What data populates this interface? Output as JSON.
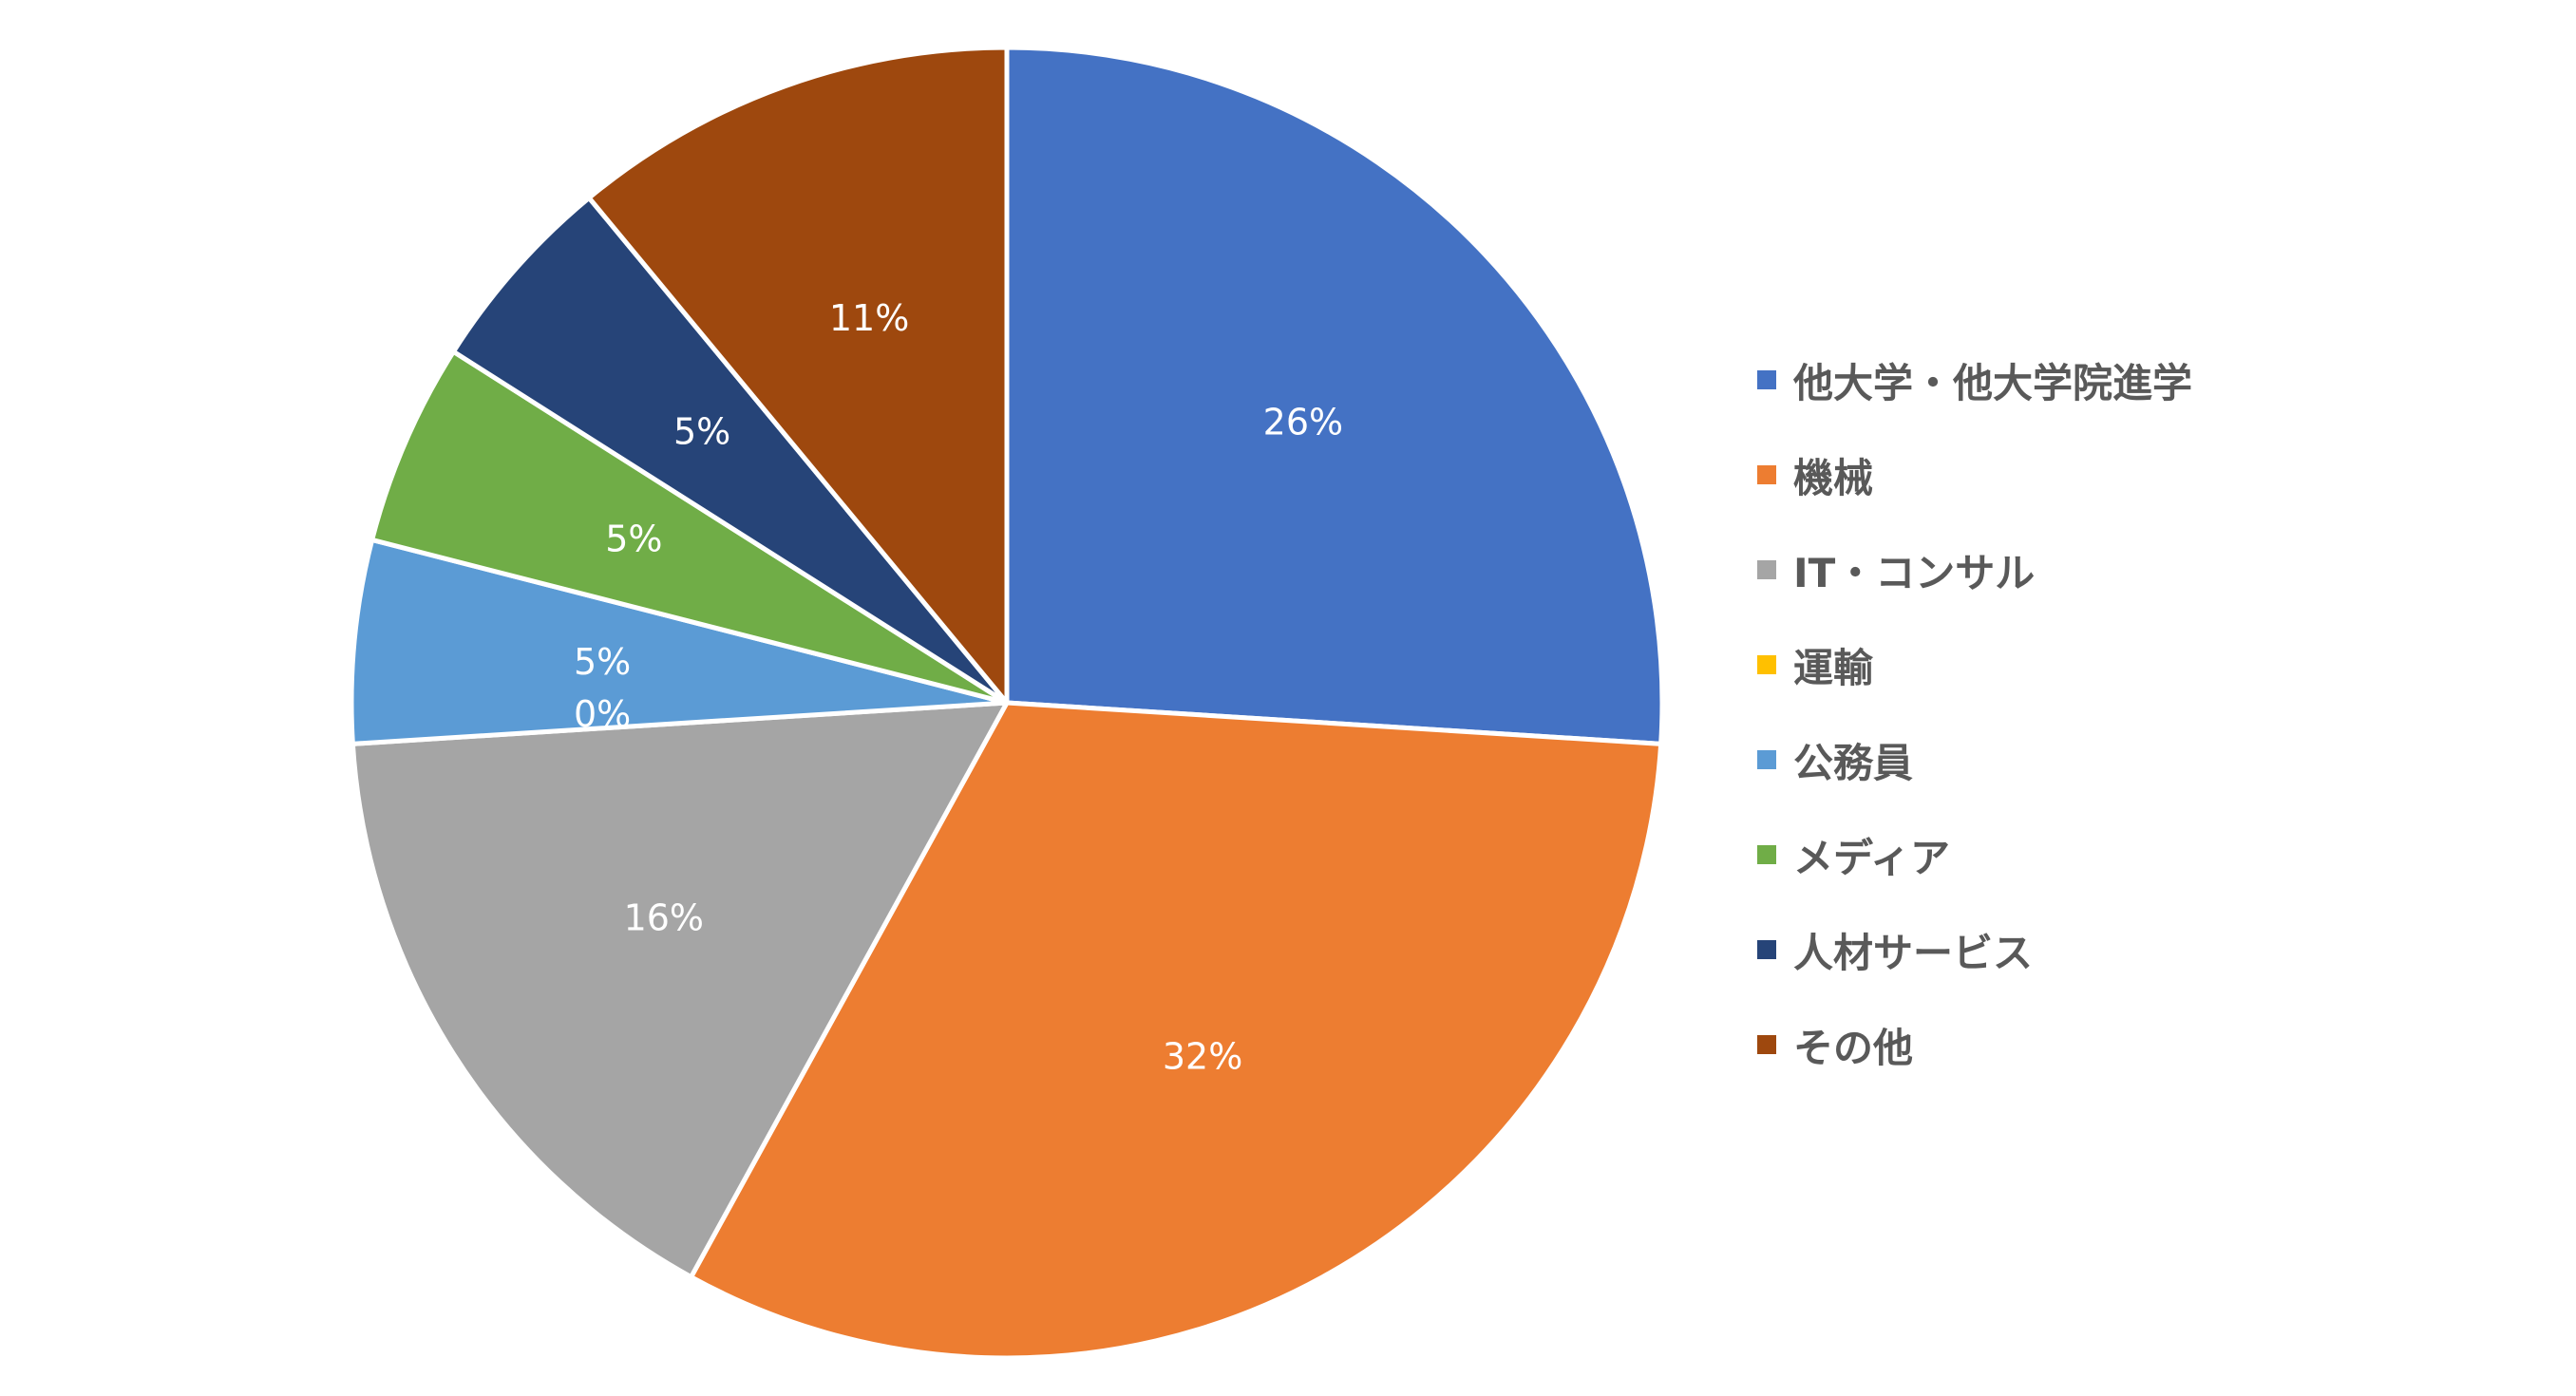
{
  "chart_data": {
    "type": "pie",
    "title": "",
    "start_angle_deg": 0,
    "direction": "clockwise",
    "legend_position": "right",
    "slices": [
      {
        "name": "他大学・他大学院進学",
        "value": 26,
        "label": "26%",
        "color": "#4472C4"
      },
      {
        "name": "機械",
        "value": 32,
        "label": "32%",
        "color": "#ED7D31"
      },
      {
        "name": "IT・コンサル",
        "value": 16,
        "label": "16%",
        "color": "#A5A5A5"
      },
      {
        "name": "運輸",
        "value": 0,
        "label": "0%",
        "color": "#FFC000"
      },
      {
        "name": "公務員",
        "value": 5,
        "label": "5%",
        "color": "#5B9BD5"
      },
      {
        "name": "メディア",
        "value": 5,
        "label": "5%",
        "color": "#70AD47"
      },
      {
        "name": "人材サービス",
        "value": 5,
        "label": "5%",
        "color": "#264478"
      },
      {
        "name": "その他",
        "value": 11,
        "label": "11%",
        "color": "#9E480E"
      }
    ]
  }
}
